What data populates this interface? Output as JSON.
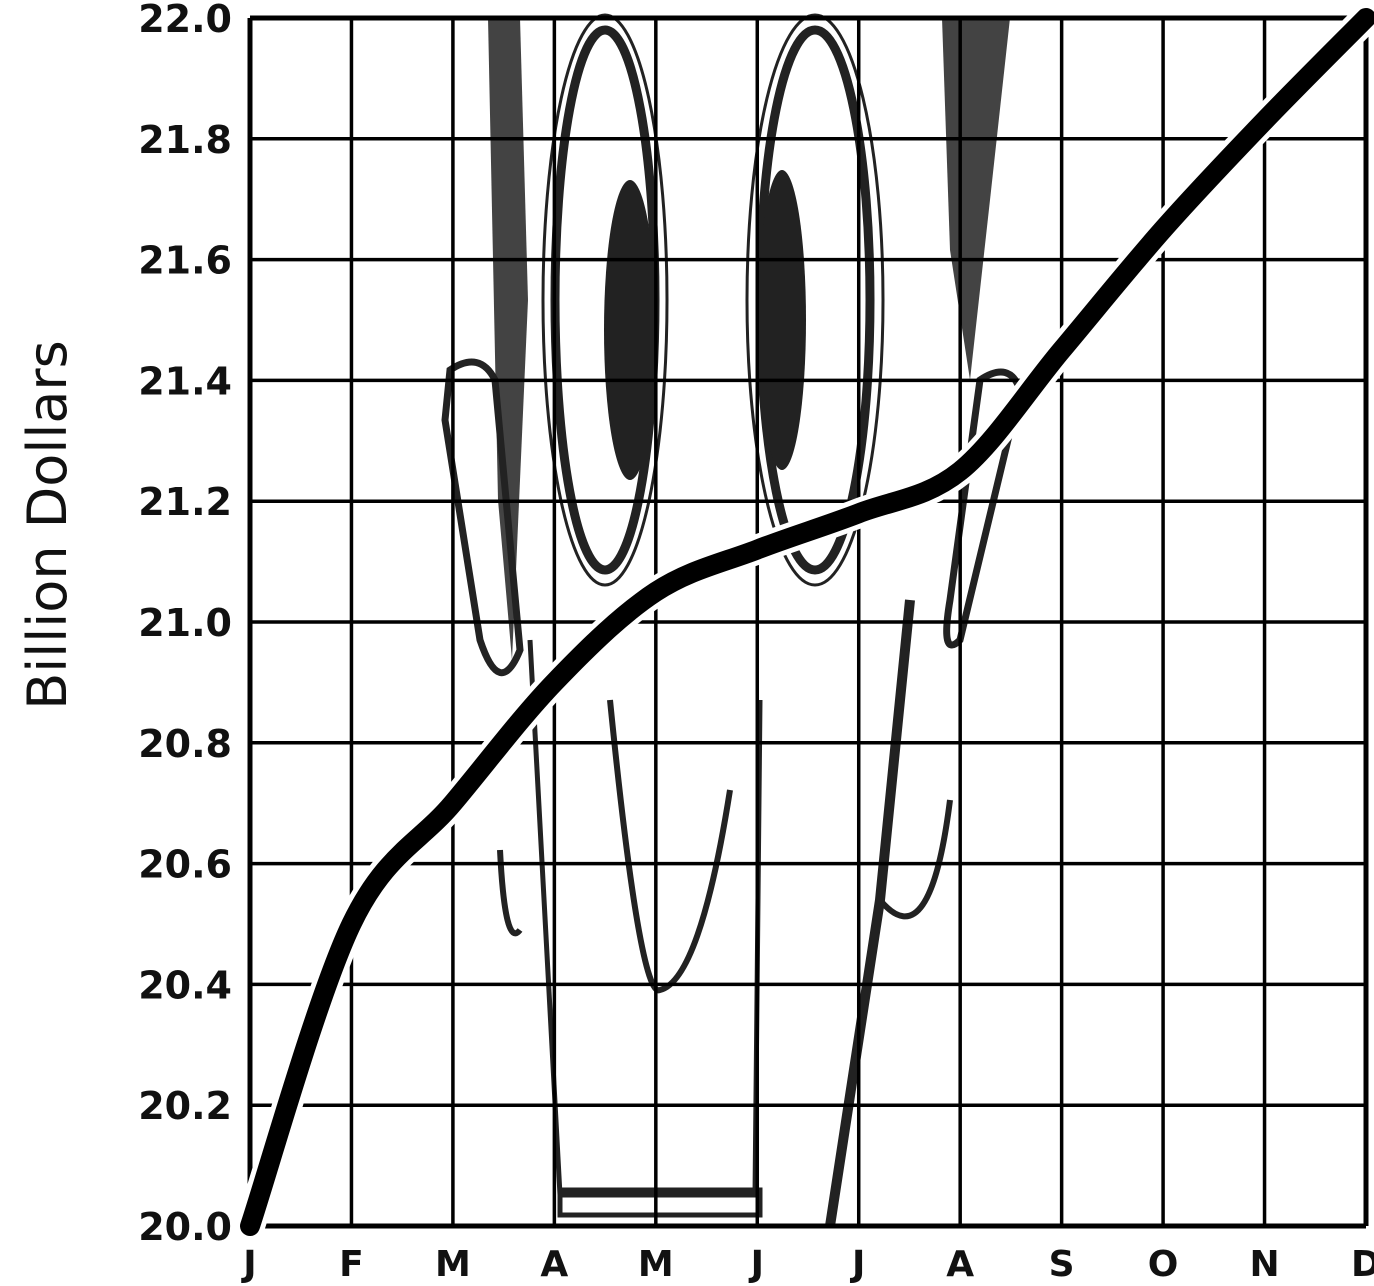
{
  "chart_data": {
    "type": "line",
    "title": "",
    "xlabel": "",
    "ylabel": "Billion Dollars",
    "categories": [
      "J",
      "F",
      "M",
      "A",
      "M",
      "J",
      "J",
      "A",
      "S",
      "O",
      "N",
      "D"
    ],
    "ylim": [
      20.0,
      22.0
    ],
    "yticks": [
      "20.0",
      "20.2",
      "20.4",
      "20.6",
      "20.8",
      "21.0",
      "21.2",
      "21.4",
      "21.6",
      "21.8",
      "22.0"
    ],
    "grid": true,
    "series": [
      {
        "values": [
          20.0,
          20.5,
          20.7,
          20.9,
          21.05,
          21.12,
          21.18,
          21.25,
          21.45,
          21.65,
          21.83,
          22.0
        ]
      }
    ],
    "colors": {
      "line": "#000000",
      "grid": "#000000",
      "background": "#ffffff",
      "illustration": "#222222"
    }
  }
}
